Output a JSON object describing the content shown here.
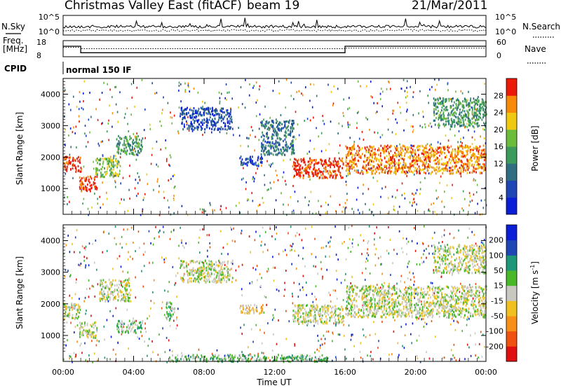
{
  "header": {
    "title": "Christmas Valley East (fitACF)",
    "beam": "beam 19",
    "date": "21/Mar/2011"
  },
  "chart_data": [
    {
      "type": "line",
      "panel": "noise",
      "left_label": "N.Sky",
      "right_label": "N.Search",
      "left_ticks": [
        "10^5",
        "10^0"
      ],
      "right_ticks": [
        "10^5",
        "10^0"
      ],
      "series": [
        {
          "name": "N.Sky",
          "style": "solid"
        },
        {
          "name": "N.Search",
          "style": "dotted"
        }
      ]
    },
    {
      "type": "line",
      "panel": "frequency",
      "left_label": "Freq. [MHz]",
      "right_label": "Nave",
      "left_ticks": [
        18,
        8
      ],
      "right_ticks": [
        60,
        0
      ],
      "x_hours": [
        0,
        1,
        1,
        16,
        16,
        24
      ],
      "freq_mhz": [
        14.5,
        14.5,
        10.5,
        10.5,
        14.5,
        14.5
      ],
      "nave": [
        35,
        35,
        30,
        30,
        32,
        32
      ]
    },
    {
      "type": "table",
      "panel": "cpid",
      "label": "CPID",
      "value": "normal 150 IF"
    },
    {
      "type": "heatmap",
      "panel": "power",
      "ylabel": "Slant Range [km]",
      "yticks": [
        1000,
        2000,
        3000,
        4000
      ],
      "ylim": [
        180,
        4500
      ],
      "xlim": [
        0,
        24
      ],
      "colorbar": {
        "label": "Power [dB]",
        "ticks": [
          "4",
          "8",
          "12",
          "16",
          "20",
          "24",
          "28"
        ],
        "colors": [
          "#0a1ed8",
          "#1e46b4",
          "#2e6e80",
          "#3c9a5a",
          "#6cbc3c",
          "#f0c810",
          "#f88a08",
          "#ec1808"
        ]
      },
      "features": [
        {
          "t0": 0.0,
          "t1": 1.0,
          "r0": 1550,
          "r1": 2050,
          "level": 7
        },
        {
          "t0": 0.9,
          "t1": 1.9,
          "r0": 950,
          "r1": 1450,
          "level": 7
        },
        {
          "t0": 1.8,
          "t1": 3.2,
          "r0": 1400,
          "r1": 2000,
          "level": 4
        },
        {
          "t0": 3.0,
          "t1": 4.5,
          "r0": 2100,
          "r1": 2700,
          "level": 3
        },
        {
          "t0": 6.6,
          "t1": 9.6,
          "r0": 2900,
          "r1": 3600,
          "level": 1
        },
        {
          "t0": 10.0,
          "t1": 11.3,
          "r0": 1750,
          "r1": 2050,
          "level": 1
        },
        {
          "t0": 11.2,
          "t1": 13.1,
          "r0": 2100,
          "r1": 3200,
          "level": 2
        },
        {
          "t0": 13.0,
          "t1": 15.9,
          "r0": 1350,
          "r1": 2000,
          "level": 7
        },
        {
          "t0": 16.0,
          "t1": 24.0,
          "r0": 1500,
          "r1": 2400,
          "level": 6
        },
        {
          "t0": 21.0,
          "t1": 24.0,
          "r0": 3000,
          "r1": 3900,
          "level": 3
        }
      ]
    },
    {
      "type": "heatmap",
      "panel": "velocity",
      "ylabel": "Slant Range [km]",
      "xlabel": "Time UT",
      "yticks": [
        1000,
        2000,
        3000,
        4000
      ],
      "ylim": [
        180,
        4500
      ],
      "xlim": [
        0,
        24
      ],
      "xticks": [
        "00:00",
        "04:00",
        "08:00",
        "12:00",
        "16:00",
        "20:00",
        "00:00"
      ],
      "colorbar": {
        "label": "Velocity [m s",
        "superscript": "-1",
        "unit_close": "]",
        "ticks": [
          "-200",
          "-100",
          "-50",
          "-15",
          "15",
          "50",
          "100",
          "200"
        ],
        "colors": [
          "#e01010",
          "#f05010",
          "#f89018",
          "#f0c020",
          "#c8c8c0",
          "#48b828",
          "#1e9678",
          "#1e46b4",
          "#0a1ed8"
        ]
      },
      "features": [
        {
          "t0": 0.0,
          "t1": 1.0,
          "r0": 1550,
          "r1": 2050,
          "level": 4
        },
        {
          "t0": 0.9,
          "t1": 1.9,
          "r0": 950,
          "r1": 1450,
          "level": 4
        },
        {
          "t0": 2.0,
          "t1": 3.8,
          "r0": 2100,
          "r1": 2800,
          "level": 4
        },
        {
          "t0": 3.0,
          "t1": 4.5,
          "r0": 1100,
          "r1": 1500,
          "level": 5
        },
        {
          "t0": 5.8,
          "t1": 6.3,
          "r0": 1500,
          "r1": 2100,
          "level": 5
        },
        {
          "t0": 6.6,
          "t1": 9.6,
          "r0": 2700,
          "r1": 3400,
          "level": 4
        },
        {
          "t0": 10.0,
          "t1": 11.3,
          "r0": 1700,
          "r1": 2000,
          "level": 3
        },
        {
          "t0": 13.0,
          "t1": 15.9,
          "r0": 1400,
          "r1": 2000,
          "level": 4
        },
        {
          "t0": 16.0,
          "t1": 24.0,
          "r0": 1600,
          "r1": 2600,
          "level": 4
        },
        {
          "t0": 21.0,
          "t1": 24.0,
          "r0": 3000,
          "r1": 3900,
          "level": 4
        },
        {
          "t0": 6.0,
          "t1": 15.0,
          "r0": 200,
          "r1": 420,
          "level": 5
        }
      ]
    }
  ]
}
